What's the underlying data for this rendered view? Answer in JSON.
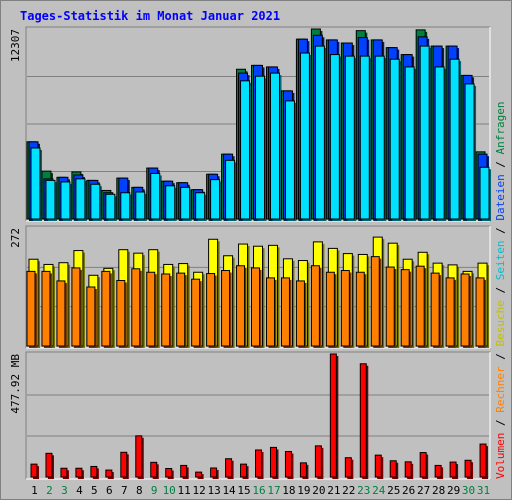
{
  "chart_data": {
    "type": "bar",
    "title": "Tages-Statistik im Monat Januar 2021",
    "colors": {
      "title": "#0000ff",
      "anfragen": "#008040",
      "dateien": "#0040ff",
      "seiten": "#00e0ff",
      "besuche": "#ffff00",
      "rechner": "#ff8000",
      "volumen": "#ff0000",
      "weekend_label": "#008040",
      "weekday_label": "#000000",
      "grid": "#808080"
    },
    "panels": [
      {
        "name": "hits",
        "axis_label": "12307",
        "ylim": [
          0,
          12307
        ]
      },
      {
        "name": "visits",
        "axis_label": "272",
        "ylim": [
          0,
          272
        ]
      },
      {
        "name": "volume",
        "axis_label": "477.92 MB",
        "ylim": [
          0,
          477.92
        ]
      }
    ],
    "side_legend": [
      {
        "text": "Volumen",
        "color": "#ff0000"
      },
      {
        "text": " / ",
        "color": "#000000"
      },
      {
        "text": "Rechner",
        "color": "#ff8000"
      },
      {
        "text": " / ",
        "color": "#000000"
      },
      {
        "text": "Besuche",
        "color": "#c0c000"
      },
      {
        "text": " / ",
        "color": "#000000"
      },
      {
        "text": "Seiten",
        "color": "#00c0d0"
      },
      {
        "text": " / ",
        "color": "#000000"
      },
      {
        "text": "Dateien",
        "color": "#0040ff"
      },
      {
        "text": " / ",
        "color": "#000000"
      },
      {
        "text": "Anfragen",
        "color": "#008040"
      }
    ],
    "days": [
      "1",
      "2",
      "3",
      "4",
      "5",
      "6",
      "7",
      "8",
      "9",
      "10",
      "11",
      "12",
      "13",
      "14",
      "15",
      "16",
      "17",
      "18",
      "19",
      "20",
      "21",
      "22",
      "23",
      "24",
      "25",
      "26",
      "27",
      "28",
      "29",
      "30",
      "31"
    ],
    "weekend_days": [
      "2",
      "3",
      "9",
      "10",
      "16",
      "17",
      "23",
      "24",
      "30",
      "31"
    ],
    "anfragen": [
      5000,
      3100,
      2700,
      3050,
      2500,
      1850,
      2650,
      2050,
      3300,
      2450,
      2350,
      1900,
      2900,
      4200,
      9700,
      9950,
      9850,
      8300,
      11650,
      12307,
      11600,
      11400,
      12200,
      11600,
      11100,
      10650,
      12250,
      11200,
      11200,
      9300,
      4350
    ],
    "dateien": [
      5000,
      2600,
      2700,
      2850,
      2500,
      1700,
      2650,
      2050,
      3300,
      2450,
      2350,
      1900,
      2900,
      4200,
      9450,
      9950,
      9850,
      8300,
      11650,
      11900,
      11600,
      11400,
      11750,
      11600,
      11100,
      10650,
      11800,
      11200,
      11200,
      9300,
      4200
    ],
    "seiten": [
      4600,
      2500,
      2400,
      2600,
      2250,
      1600,
      1700,
      1750,
      2950,
      2150,
      2050,
      1700,
      2550,
      3800,
      8950,
      9250,
      9450,
      7650,
      10750,
      11200,
      10650,
      10550,
      10550,
      10550,
      10350,
      9850,
      11200,
      9850,
      10350,
      8750,
      3350
    ],
    "besuche": [
      200,
      188,
      192,
      220,
      163,
      179,
      222,
      214,
      222,
      188,
      190,
      170,
      246,
      208,
      235,
      230,
      232,
      201,
      197,
      240,
      225,
      213,
      211,
      251,
      237,
      200,
      216,
      191,
      187,
      172,
      191
    ],
    "rechner": [
      172,
      172,
      150,
      180,
      136,
      172,
      151,
      178,
      170,
      166,
      168,
      154,
      167,
      174,
      185,
      180,
      157,
      157,
      150,
      185,
      170,
      174,
      170,
      206,
      182,
      176,
      184,
      168,
      157,
      166,
      157
    ],
    "volumen": [
      50,
      92,
      34,
      34,
      41,
      27,
      96,
      160,
      57,
      33,
      45,
      19,
      35,
      71,
      50,
      105,
      115,
      99,
      55,
      121,
      477.92,
      75,
      440,
      85,
      63,
      59,
      95,
      45,
      58,
      65,
      128
    ]
  }
}
